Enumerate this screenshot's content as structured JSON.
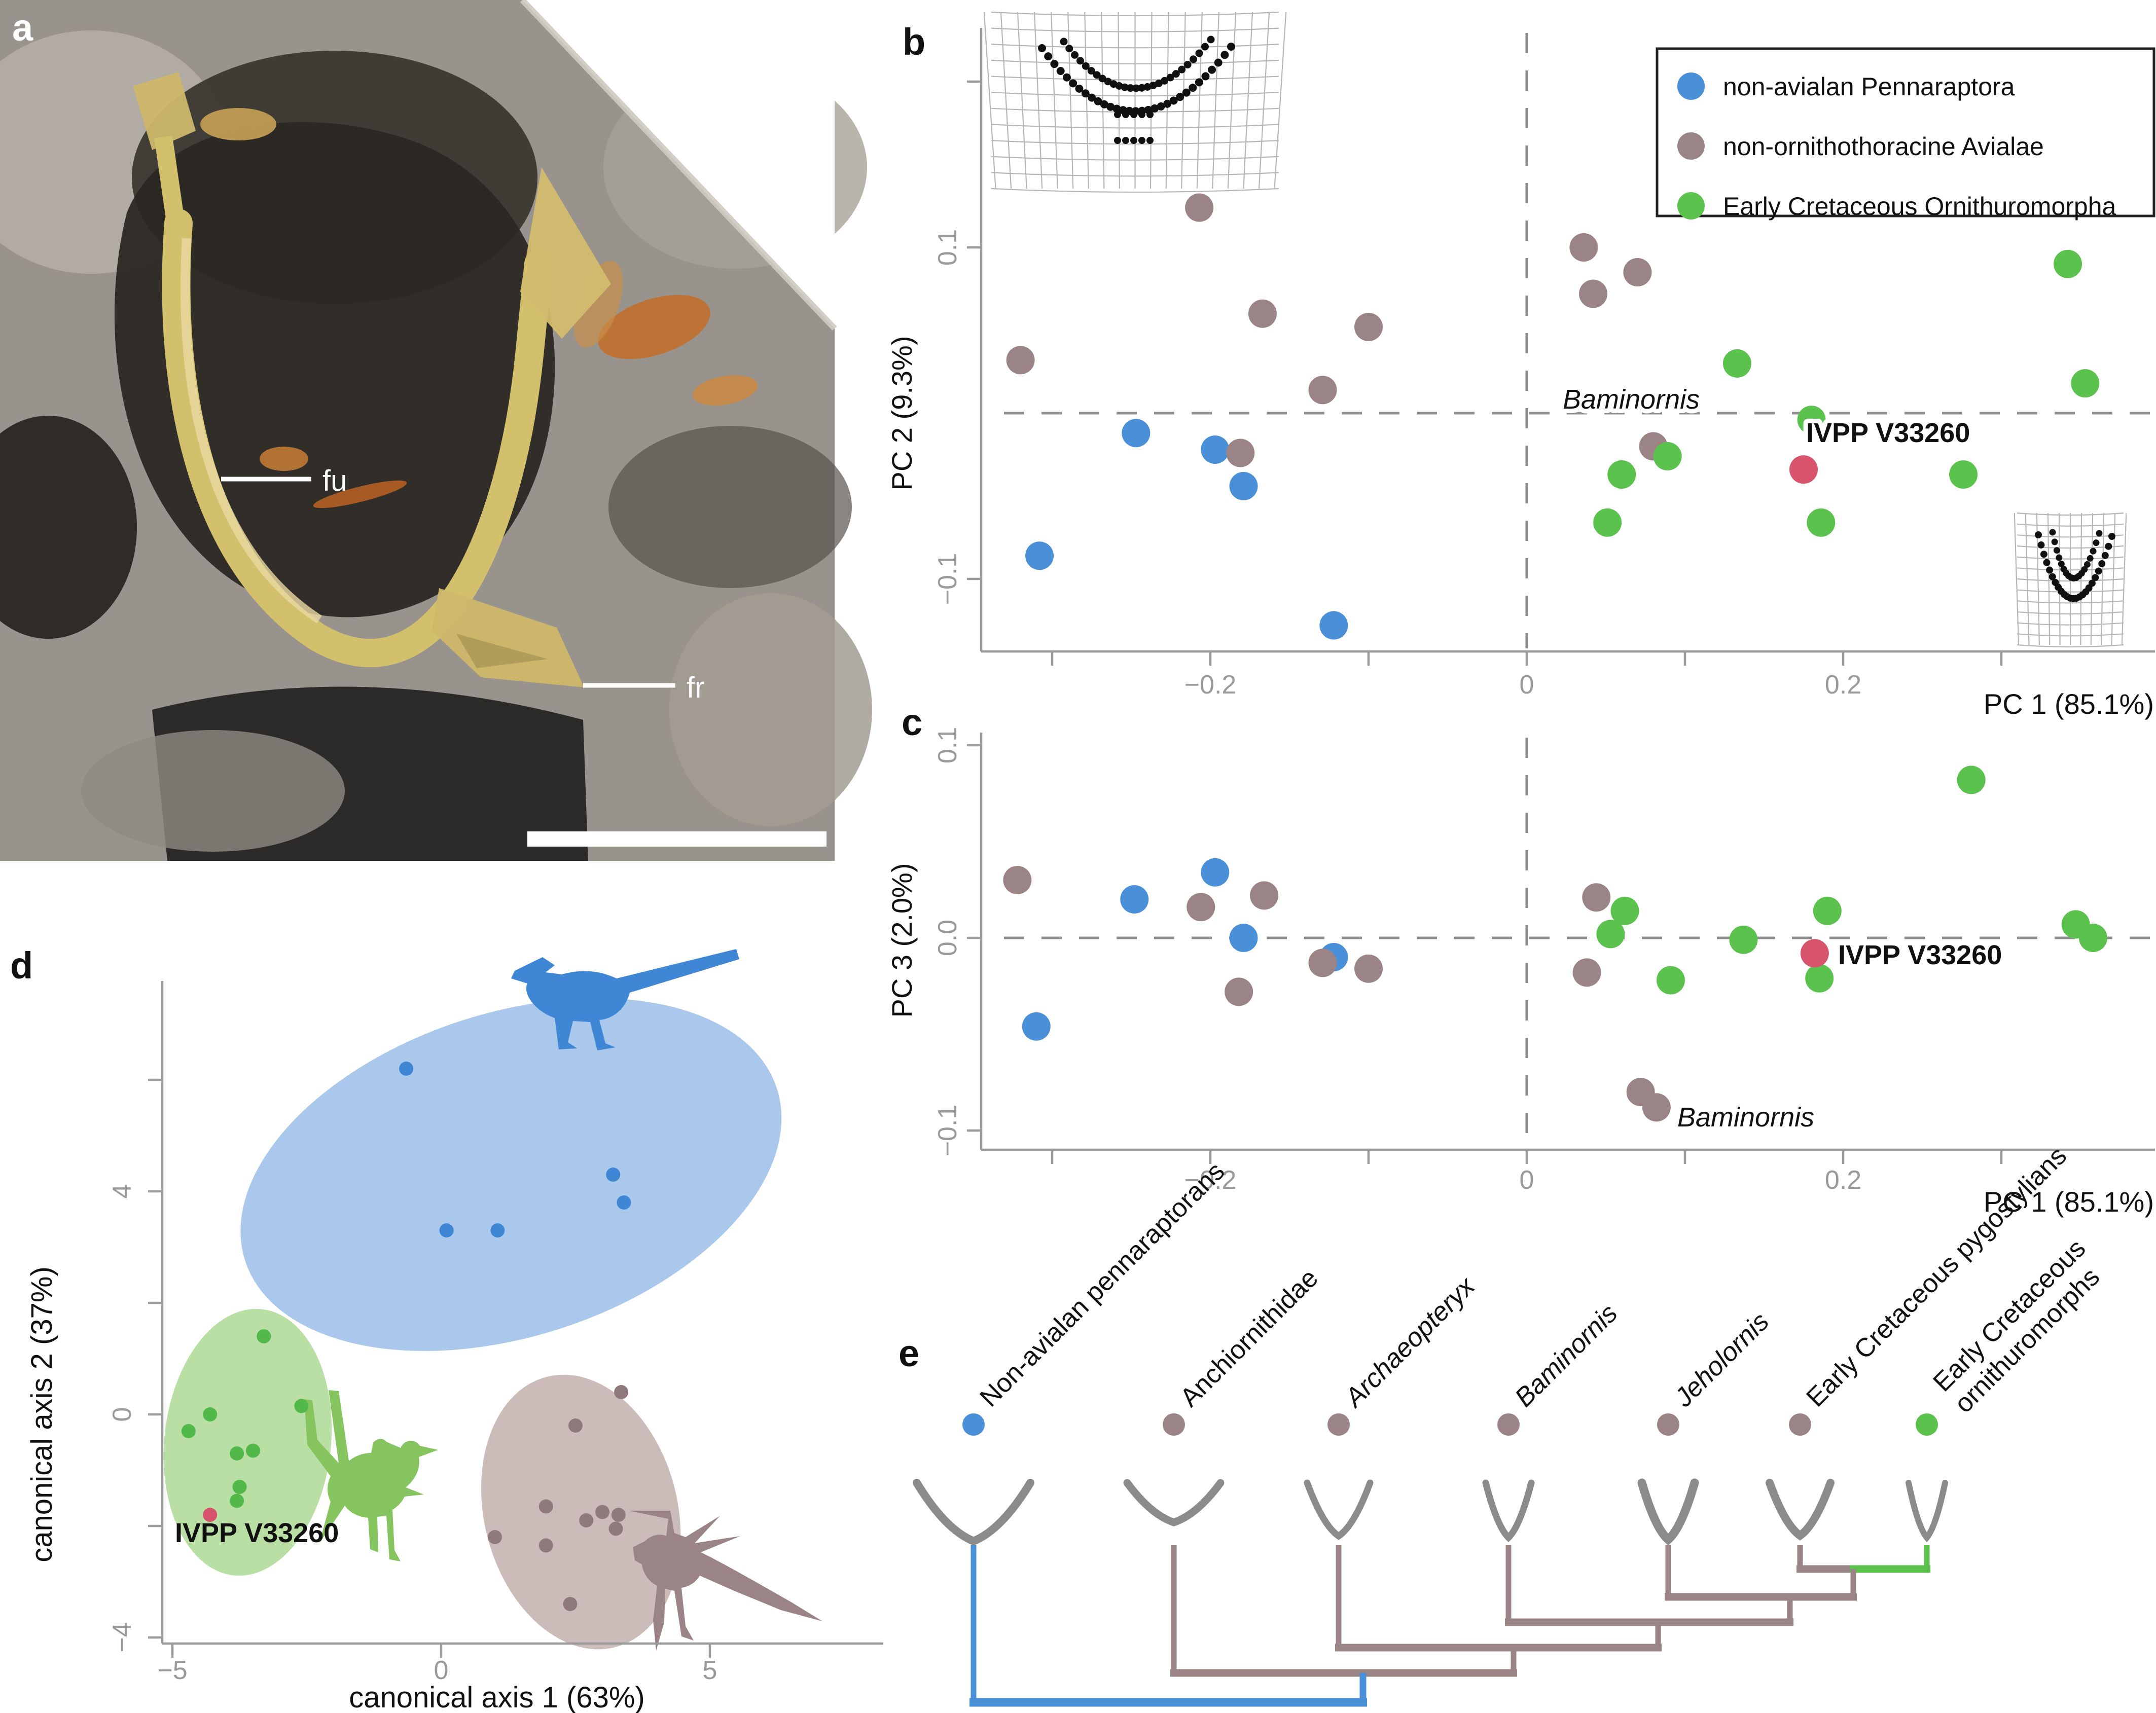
{
  "panels": {
    "a": {
      "letter": "a",
      "labels": {
        "fu": "fu",
        "fr": "fr"
      }
    },
    "b": {
      "letter": "b"
    },
    "c": {
      "letter": "c"
    },
    "d": {
      "letter": "d"
    },
    "e": {
      "letter": "e"
    }
  },
  "legend": {
    "items": [
      {
        "label": "non-avialan Pennaraptora",
        "color": "#4a90d9"
      },
      {
        "label": "non-ornithothoracine Avialae",
        "color": "#9b8486"
      },
      {
        "label": "Early Cretaceous Ornithuromorpha",
        "color": "#5cc24e"
      }
    ]
  },
  "chart_data": [
    {
      "id": "b",
      "type": "scatter",
      "panel": "b",
      "xlabel": "PC 1 (85.1%)",
      "ylabel": "PC 2 (9.3%)",
      "xlim": [
        -0.34,
        0.4
      ],
      "ylim": [
        -0.145,
        0.24
      ],
      "grid": false,
      "xticks": [
        {
          "v": -0.3
        },
        {
          "v": -0.2,
          "label": "−0.2"
        },
        {
          "v": -0.1
        },
        {
          "v": 0,
          "label": "0"
        },
        {
          "v": 0.1
        },
        {
          "v": 0.2,
          "label": "0.2"
        },
        {
          "v": 0.3
        }
      ],
      "yticks": [
        {
          "v": 0.2
        },
        {
          "v": 0.1,
          "label": "0.1"
        },
        {
          "v": -0.1,
          "label": "−0.1"
        }
      ],
      "zero_lines": true,
      "series": [
        {
          "name": "non-avialan Pennaraptora",
          "color": "#4a90d9",
          "points": [
            [
              -0.247,
              -0.012
            ],
            [
              -0.197,
              -0.022
            ],
            [
              -0.179,
              -0.044
            ],
            [
              -0.308,
              -0.086
            ],
            [
              -0.122,
              -0.128
            ]
          ]
        },
        {
          "name": "non-ornithothoracine Avialae",
          "color": "#9b8486",
          "points": [
            [
              -0.207,
              0.124
            ],
            [
              -0.32,
              0.032
            ],
            [
              -0.167,
              0.06
            ],
            [
              -0.1,
              0.052
            ],
            [
              -0.129,
              0.014
            ],
            [
              -0.181,
              -0.024
            ],
            [
              0.036,
              0.1
            ],
            [
              0.07,
              0.085
            ],
            [
              0.042,
              0.072
            ],
            [
              0.08,
              -0.02
            ]
          ]
        },
        {
          "name": "Early Cretaceous Ornithuromorpha",
          "color": "#5cc24e",
          "points": [
            [
              0.342,
              0.09
            ],
            [
              0.353,
              0.018
            ],
            [
              0.133,
              0.03
            ],
            [
              0.18,
              -0.004
            ],
            [
              0.089,
              -0.026
            ],
            [
              0.06,
              -0.037
            ],
            [
              0.276,
              -0.037
            ],
            [
              0.051,
              -0.066
            ],
            [
              0.186,
              -0.066
            ]
          ]
        },
        {
          "name": "IVPP V33260",
          "color": "#d8536c",
          "points": [
            [
              0.175,
              -0.034
            ]
          ]
        }
      ],
      "annotations": [
        {
          "text": "Baminornis",
          "style": "italic"
        },
        {
          "text": "IVPP V33260",
          "style": "bold"
        }
      ]
    },
    {
      "id": "c",
      "type": "scatter",
      "panel": "c",
      "xlabel": "PC 1 (85.1%)",
      "ylabel": "PC 3 (2.0%)",
      "xlim": [
        -0.34,
        0.4
      ],
      "ylim": [
        -0.11,
        0.105
      ],
      "grid": false,
      "xticks": [
        {
          "v": -0.3
        },
        {
          "v": -0.2,
          "label": "−0.2"
        },
        {
          "v": -0.1
        },
        {
          "v": 0,
          "label": "0"
        },
        {
          "v": 0.1
        },
        {
          "v": 0.2,
          "label": "0.2"
        },
        {
          "v": 0.3
        }
      ],
      "yticks": [
        {
          "v": 0.1,
          "label": "0.1"
        },
        {
          "v": 0,
          "label": "0.0"
        },
        {
          "v": -0.1,
          "label": "−0.1"
        }
      ],
      "zero_lines": true,
      "series": [
        {
          "name": "non-avialan Pennaraptora",
          "color": "#4a90d9",
          "points": [
            [
              -0.248,
              0.02
            ],
            [
              -0.197,
              0.034
            ],
            [
              -0.179,
              0.0
            ],
            [
              -0.122,
              -0.01
            ],
            [
              -0.31,
              -0.046
            ]
          ]
        },
        {
          "name": "non-ornithothoracine Avialae",
          "color": "#9b8486",
          "points": [
            [
              -0.322,
              0.03
            ],
            [
              -0.206,
              0.016
            ],
            [
              -0.166,
              0.022
            ],
            [
              -0.129,
              -0.013
            ],
            [
              -0.1,
              -0.016
            ],
            [
              -0.182,
              -0.028
            ],
            [
              0.044,
              0.021
            ],
            [
              0.038,
              -0.018
            ],
            [
              0.072,
              -0.08
            ],
            [
              0.082,
              -0.088
            ]
          ]
        },
        {
          "name": "Early Cretaceous Ornithuromorpha",
          "color": "#5cc24e",
          "points": [
            [
              0.281,
              0.082
            ],
            [
              0.062,
              0.014
            ],
            [
              0.053,
              0.002
            ],
            [
              0.137,
              -0.001
            ],
            [
              0.19,
              0.014
            ],
            [
              0.185,
              -0.021
            ],
            [
              0.091,
              -0.022
            ],
            [
              0.347,
              0.007
            ],
            [
              0.358,
              0.0
            ]
          ]
        },
        {
          "name": "IVPP V33260",
          "color": "#d8536c",
          "points": [
            [
              0.182,
              -0.008
            ]
          ]
        }
      ],
      "annotations": [
        {
          "text": "Baminornis",
          "style": "italic"
        },
        {
          "text": "IVPP V33260",
          "style": "bold"
        }
      ]
    },
    {
      "id": "d",
      "type": "scatter",
      "panel": "d",
      "xlabel": "canonical axis 1 (63%)",
      "ylabel": "canonical axis 2 (37%)",
      "xlim": [
        -7,
        7.5
      ],
      "ylim": [
        -5,
        7.6
      ],
      "grid": false,
      "xticks": [
        {
          "v": -5,
          "label": "−5"
        },
        {
          "v": 0,
          "label": "0"
        },
        {
          "v": 5,
          "label": "5"
        }
      ],
      "yticks": [
        {
          "v": 6
        },
        {
          "v": 4,
          "label": "4"
        },
        {
          "v": 2
        },
        {
          "v": 0,
          "label": "0"
        },
        {
          "v": -2
        },
        {
          "v": -4,
          "label": "−4"
        }
      ],
      "zero_lines": false,
      "series": [
        {
          "name": "non-avialan pennaraptorans",
          "color": "#3f87d4",
          "ellipse": {
            "cx": 1.3,
            "cy": 4.3,
            "rx": 5.2,
            "ry": 2.9,
            "angle": -18,
            "fill": "#a9c8eb"
          },
          "points": [
            [
              -0.65,
              6.2
            ],
            [
              3.2,
              4.3
            ],
            [
              3.4,
              3.8
            ],
            [
              0.1,
              3.3
            ],
            [
              1.05,
              3.3
            ]
          ]
        },
        {
          "name": "Early Cretaceous ornithuromorphs",
          "color": "#53b84a",
          "ellipse": {
            "cx": -3.6,
            "cy": -0.5,
            "rx": 1.55,
            "ry": 2.4,
            "angle": 6,
            "fill": "#b9dfa4"
          },
          "points": [
            [
              -3.3,
              1.4
            ],
            [
              -2.6,
              0.15
            ],
            [
              -4.3,
              0.0
            ],
            [
              -4.7,
              -0.3
            ],
            [
              -3.8,
              -0.7
            ],
            [
              -3.5,
              -0.65
            ],
            [
              -3.75,
              -1.3
            ],
            [
              -3.8,
              -1.55
            ]
          ]
        },
        {
          "name": "non-ornithothoracine avialans",
          "color": "#90797a",
          "ellipse": {
            "cx": 2.6,
            "cy": -1.75,
            "rx": 1.8,
            "ry": 2.5,
            "angle": -14,
            "fill": "#cbbcba"
          },
          "points": [
            [
              3.35,
              0.4
            ],
            [
              2.5,
              -0.2
            ],
            [
              1.95,
              -1.65
            ],
            [
              2.7,
              -1.9
            ],
            [
              3.0,
              -1.75
            ],
            [
              3.3,
              -1.8
            ],
            [
              3.25,
              -2.05
            ],
            [
              1.0,
              -2.2
            ],
            [
              1.95,
              -2.35
            ],
            [
              2.4,
              -3.4
            ]
          ]
        },
        {
          "name": "IVPP V33260",
          "color": "#d8536c",
          "points": [
            [
              -4.3,
              -1.8
            ]
          ]
        }
      ],
      "annotations": [
        {
          "text": "IVPP V33260",
          "style": "bold"
        }
      ]
    },
    {
      "id": "e",
      "type": "tree",
      "panel": "e",
      "tips": [
        {
          "label": "Non-avialan pennaraptorans",
          "color": "#4a90d9",
          "branch": "#4a90d9"
        },
        {
          "label": "Anchiornithidae",
          "color": "#9b8486",
          "branch": "#9b8486"
        },
        {
          "label": "Archaeopteryx",
          "italic": true,
          "color": "#9b8486",
          "branch": "#9b8486"
        },
        {
          "label": "Baminornis",
          "italic": true,
          "color": "#9b8486",
          "branch": "#9b8486"
        },
        {
          "label": "Jeholornis",
          "italic": true,
          "color": "#9b8486",
          "branch": "#9b8486"
        },
        {
          "label": "Early Cretaceous pygostylians",
          "color": "#9b8486",
          "branch": "#9b8486"
        },
        {
          "label": "Early Cretaceous ornithuromorphs",
          "label_line1": "Early Cretaceous",
          "label_line2": "ornithuromorphs",
          "color": "#5cc24e",
          "branch": "#5cc24e"
        }
      ]
    }
  ]
}
